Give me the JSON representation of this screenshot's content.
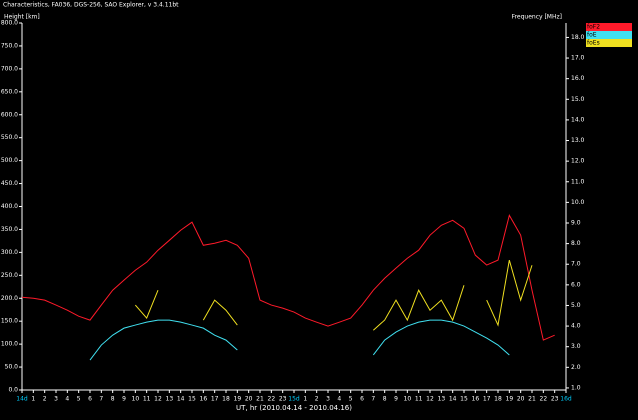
{
  "chart_data": {
    "type": "line",
    "title": "Characteristics, FA036, DGS-256, SAO Explorer, v 3.4.11bt",
    "y_label": "Height [km]",
    "y2_label": "Frequency [MHz]",
    "x_label": "UT, hr (2010.04.14 - 2010.04.16)",
    "xlim": [
      0,
      48
    ],
    "ylim": [
      0,
      800
    ],
    "y2lim": [
      0.9,
      18.7
    ],
    "yticks": [
      {
        "value": 0,
        "label": "0.0"
      },
      {
        "value": 50,
        "label": "50.0"
      },
      {
        "value": 100,
        "label": "100.0"
      },
      {
        "value": 150,
        "label": "150.0"
      },
      {
        "value": 200,
        "label": "200.0"
      },
      {
        "value": 250,
        "label": "250.0"
      },
      {
        "value": 300,
        "label": "300.0"
      },
      {
        "value": 350,
        "label": "350.0"
      },
      {
        "value": 400,
        "label": "400.0"
      },
      {
        "value": 450,
        "label": "450.0"
      },
      {
        "value": 500,
        "label": "500.0"
      },
      {
        "value": 550,
        "label": "550.0"
      },
      {
        "value": 600,
        "label": "600.0"
      },
      {
        "value": 650,
        "label": "650.0"
      },
      {
        "value": 700,
        "label": "700.0"
      },
      {
        "value": 750,
        "label": "750.0"
      },
      {
        "value": 800,
        "label": "800.0"
      }
    ],
    "y2ticks": [
      {
        "value": 1,
        "label": "1.0"
      },
      {
        "value": 2,
        "label": "2.0"
      },
      {
        "value": 3,
        "label": "3.0"
      },
      {
        "value": 4,
        "label": "4.0"
      },
      {
        "value": 5,
        "label": "5.0"
      },
      {
        "value": 6,
        "label": "6.0"
      },
      {
        "value": 7,
        "label": "7.0"
      },
      {
        "value": 8,
        "label": "8.0"
      },
      {
        "value": 9,
        "label": "9.0"
      },
      {
        "value": 10,
        "label": "10.0"
      },
      {
        "value": 11,
        "label": "11.0"
      },
      {
        "value": 12,
        "label": "12.0"
      },
      {
        "value": 13,
        "label": "13.0"
      },
      {
        "value": 14,
        "label": "14.0"
      },
      {
        "value": 15,
        "label": "15.0"
      },
      {
        "value": 16,
        "label": "16.0"
      },
      {
        "value": 17,
        "label": "17.0"
      },
      {
        "value": 18,
        "label": "18.0"
      }
    ],
    "xticks": [
      {
        "value": 0,
        "label": "14d"
      },
      1,
      2,
      3,
      4,
      5,
      6,
      7,
      8,
      9,
      10,
      11,
      12,
      13,
      14,
      15,
      16,
      17,
      18,
      19,
      20,
      21,
      22,
      23,
      {
        "value": 24,
        "label": "15d"
      },
      {
        "value": 25,
        "label": "1"
      },
      {
        "value": 26,
        "label": "2"
      },
      {
        "value": 27,
        "label": "3"
      },
      {
        "value": 28,
        "label": "4"
      },
      {
        "value": 29,
        "label": "5"
      },
      {
        "value": 30,
        "label": "6"
      },
      {
        "value": 31,
        "label": "7"
      },
      {
        "value": 32,
        "label": "8"
      },
      {
        "value": 33,
        "label": "9"
      },
      {
        "value": 34,
        "label": "10"
      },
      {
        "value": 35,
        "label": "11"
      },
      {
        "value": 36,
        "label": "12"
      },
      {
        "value": 37,
        "label": "13"
      },
      {
        "value": 38,
        "label": "14"
      },
      {
        "value": 39,
        "label": "15"
      },
      {
        "value": 40,
        "label": "16"
      },
      {
        "value": 41,
        "label": "17"
      },
      {
        "value": 42,
        "label": "18"
      },
      {
        "value": 43,
        "label": "19"
      },
      {
        "value": 44,
        "label": "20"
      },
      {
        "value": 45,
        "label": "21"
      },
      {
        "value": 46,
        "label": "22"
      },
      {
        "value": 47,
        "label": "23"
      },
      {
        "value": 48,
        "label": "16d"
      }
    ],
    "day_tick_color": "#00d0ff",
    "x": [
      0,
      1,
      2,
      3,
      4,
      5,
      6,
      7,
      8,
      9,
      10,
      11,
      12,
      13,
      14,
      15,
      16,
      17,
      18,
      19,
      20,
      21,
      22,
      23,
      24,
      25,
      26,
      27,
      28,
      29,
      30,
      31,
      32,
      33,
      34,
      35,
      36,
      37,
      38,
      39,
      40,
      41,
      42,
      43,
      44,
      45,
      46,
      47
    ],
    "series": [
      {
        "name": "foF2",
        "color": "#ff1a2a",
        "axis": "y2",
        "values": [
          5.4,
          5.35,
          5.26,
          5.02,
          4.77,
          4.48,
          4.29,
          5.02,
          5.74,
          6.23,
          6.71,
          7.1,
          7.68,
          8.16,
          8.65,
          9.04,
          7.92,
          8.02,
          8.16,
          7.92,
          7.29,
          5.26,
          5.02,
          4.87,
          4.68,
          4.39,
          4.19,
          4.0,
          4.19,
          4.39,
          5.02,
          5.74,
          6.32,
          6.81,
          7.29,
          7.68,
          8.41,
          8.89,
          9.13,
          8.74,
          7.44,
          6.96,
          7.2,
          9.37,
          8.41,
          5.74,
          3.32,
          3.56
        ]
      },
      {
        "name": "foE",
        "color": "#40e0f0",
        "axis": "y2",
        "values": [
          null,
          null,
          null,
          null,
          null,
          null,
          2.35,
          3.08,
          3.56,
          3.9,
          4.05,
          4.19,
          4.29,
          4.29,
          4.19,
          4.05,
          3.9,
          3.56,
          3.32,
          2.84,
          null,
          null,
          null,
          null,
          null,
          null,
          null,
          null,
          null,
          null,
          null,
          2.6,
          3.32,
          3.71,
          4.0,
          4.19,
          4.29,
          4.29,
          4.19,
          4.0,
          3.71,
          3.42,
          3.08,
          2.6,
          null,
          null,
          null,
          null
        ]
      },
      {
        "name": "foEs",
        "color": "#f0e020",
        "axis": "y2",
        "values": [
          null,
          null,
          null,
          null,
          null,
          null,
          null,
          null,
          null,
          null,
          5.02,
          4.39,
          5.74,
          null,
          null,
          null,
          4.29,
          5.26,
          4.77,
          4.05,
          null,
          null,
          null,
          null,
          null,
          null,
          null,
          null,
          null,
          null,
          null,
          3.8,
          4.29,
          5.26,
          4.29,
          5.74,
          4.77,
          5.26,
          4.29,
          5.98,
          null,
          5.26,
          4.05,
          7.2,
          5.26,
          6.95,
          null,
          null
        ]
      }
    ]
  }
}
